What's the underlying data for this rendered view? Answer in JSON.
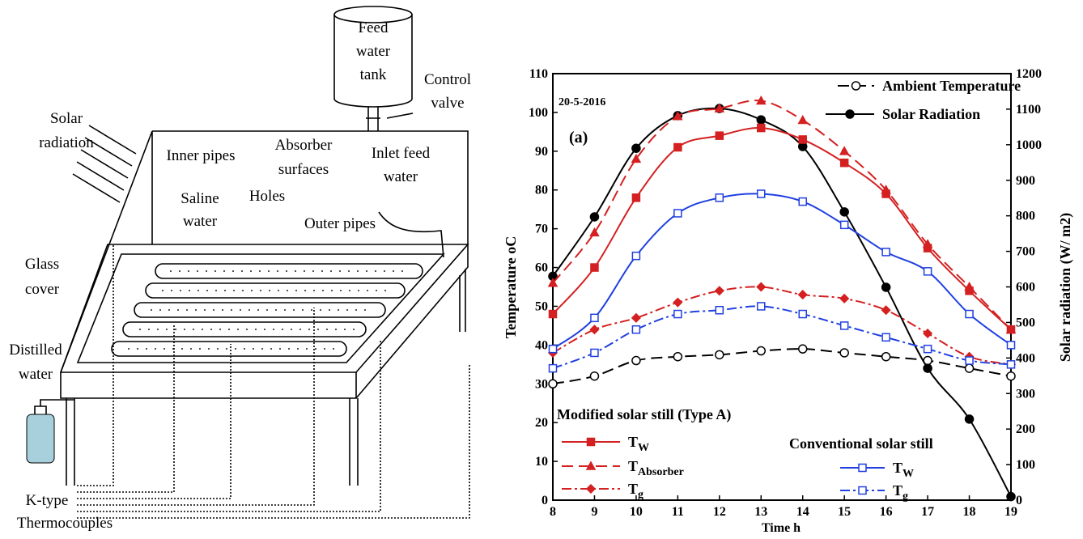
{
  "diagram": {
    "labels": [
      {
        "lines": [
          "Feed",
          "water",
          "tank"
        ]
      },
      {
        "lines": [
          "Control",
          "valve"
        ]
      },
      {
        "lines": [
          "Solar",
          "radiation"
        ]
      },
      {
        "lines": [
          "Inner pipes"
        ]
      },
      {
        "lines": [
          "Absorber",
          "surfaces"
        ]
      },
      {
        "lines": [
          "Inlet feed",
          "water"
        ]
      },
      {
        "lines": [
          "Saline",
          "water"
        ]
      },
      {
        "lines": [
          "Holes"
        ]
      },
      {
        "lines": [
          "Outer pipes"
        ]
      },
      {
        "lines": [
          "Glass",
          "cover"
        ]
      },
      {
        "lines": [
          "Distilled",
          "water"
        ]
      },
      {
        "lines": [
          "K-type",
          "Thermocouples"
        ]
      }
    ]
  },
  "chart_data": {
    "type": "line",
    "x": [
      8,
      9,
      10,
      11,
      12,
      13,
      14,
      15,
      16,
      17,
      18,
      19
    ],
    "xlim": [
      8,
      19
    ],
    "xticks": [
      8,
      9,
      10,
      11,
      12,
      13,
      14,
      15,
      16,
      17,
      18,
      19
    ],
    "ylim": [
      0,
      110
    ],
    "yticks": [
      0,
      10,
      20,
      30,
      40,
      50,
      60,
      70,
      80,
      90,
      100,
      110
    ],
    "y2lim": [
      0,
      1200
    ],
    "y2ticks": [
      0,
      100,
      200,
      300,
      400,
      500,
      600,
      700,
      800,
      900,
      1000,
      1100,
      1200
    ],
    "xlabel": "Time h",
    "ylabel": "Temperature oC",
    "y2label": "Solar radiation (W/ m2)",
    "annotations": [
      "20-5-2016",
      "(a)",
      "Modified solar still (Type A)",
      "Conventional solar still"
    ],
    "series": [
      {
        "name": "Ambient Temperature",
        "color": "#000000",
        "dash": "dashed",
        "marker": "circle-open",
        "values": [
          30,
          32,
          36,
          37,
          37.5,
          38.5,
          39,
          38,
          37,
          36,
          34,
          32
        ]
      },
      {
        "name": "Solar Radiation",
        "color": "#000000",
        "dash": "solid",
        "marker": "circle-filled",
        "axis": "y2",
        "values": [
          630,
          797,
          990,
          1082,
          1102,
          1070,
          995,
          811,
          599,
          371,
          228,
          10
        ]
      },
      {
        "name": "TW",
        "color": "#d42020",
        "dash": "solid",
        "marker": "square-filled",
        "values": [
          48,
          60,
          78,
          91,
          94,
          96,
          93,
          87,
          79,
          65,
          54,
          44
        ]
      },
      {
        "name": "TAbsorber",
        "color": "#d42020",
        "dash": "dashed",
        "marker": "triangle-filled",
        "values": [
          56,
          69,
          88,
          99,
          101,
          103,
          98,
          90,
          80,
          66,
          55,
          44
        ]
      },
      {
        "name": "Tg",
        "color": "#d42020",
        "dash": "dashdot",
        "marker": "diamond-filled",
        "values": [
          38,
          44,
          47,
          51,
          54,
          55,
          53,
          52,
          49,
          43,
          37,
          35
        ]
      },
      {
        "name": "TW",
        "color": "#2040e0",
        "dash": "solid",
        "marker": "square-open",
        "values": [
          39,
          47,
          63,
          74,
          78,
          79,
          77,
          71,
          64,
          59,
          48,
          40
        ]
      },
      {
        "name": "Tg",
        "color": "#2040e0",
        "dash": "dashdot",
        "marker": "square-open",
        "values": [
          34,
          38,
          44,
          48,
          49,
          50,
          48,
          45,
          42,
          39,
          36,
          35
        ]
      }
    ]
  }
}
